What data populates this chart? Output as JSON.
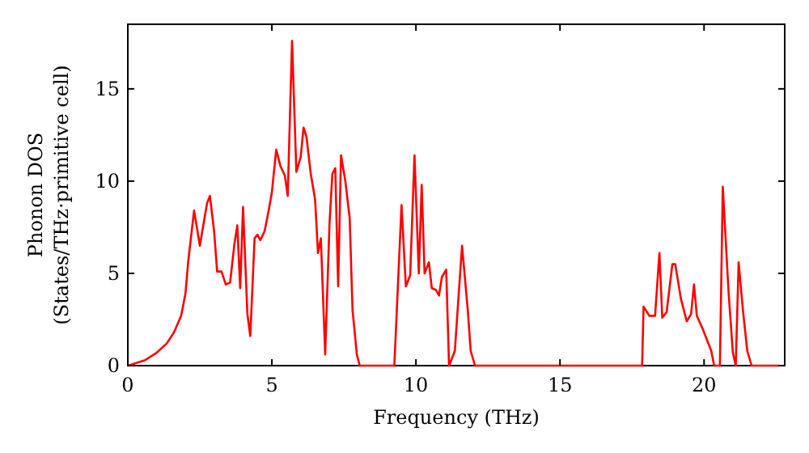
{
  "chart_data": {
    "type": "line",
    "xlabel": "Frequency (THz)",
    "ylabel": "Phonon DOS\n(States/THz·primitive cell)",
    "xlim": [
      0,
      22.8
    ],
    "ylim": [
      0,
      18.5
    ],
    "xticks": [
      0,
      5,
      10,
      15,
      20
    ],
    "yticks": [
      0,
      5,
      10,
      15
    ],
    "grid": false,
    "marker": "none",
    "line_style": "solid",
    "series": [
      {
        "color": "#ff0000",
        "x": [
          0,
          0.6,
          1.0,
          1.35,
          1.6,
          1.85,
          2.0,
          2.1,
          2.3,
          2.5,
          2.75,
          2.85,
          3.0,
          3.1,
          3.25,
          3.4,
          3.55,
          3.7,
          3.8,
          3.9,
          4.0,
          4.15,
          4.25,
          4.4,
          4.5,
          4.6,
          4.75,
          4.9,
          5.0,
          5.15,
          5.3,
          5.45,
          5.55,
          5.7,
          5.85,
          6.0,
          6.1,
          6.2,
          6.35,
          6.5,
          6.6,
          6.7,
          6.85,
          7.0,
          7.1,
          7.2,
          7.3,
          7.4,
          7.55,
          7.7,
          7.8,
          7.95,
          8.05,
          9.25,
          9.5,
          9.65,
          9.8,
          9.95,
          10.1,
          10.2,
          10.3,
          10.45,
          10.55,
          10.7,
          10.8,
          10.9,
          11.05,
          11.15,
          11.35,
          11.6,
          11.8,
          11.9,
          12.05,
          17.85,
          17.9,
          18.1,
          18.3,
          18.45,
          18.55,
          18.7,
          18.9,
          19.0,
          19.2,
          19.4,
          19.55,
          19.65,
          19.75,
          19.95,
          20.05,
          20.25,
          20.35,
          20.55,
          20.65,
          20.85,
          21.0,
          21.1,
          21.2,
          21.35,
          21.5,
          21.65,
          22.6
        ],
        "values": [
          0,
          0.3,
          0.7,
          1.2,
          1.8,
          2.7,
          3.9,
          5.7,
          8.4,
          6.5,
          8.8,
          9.2,
          7.2,
          5.1,
          5.1,
          4.4,
          4.5,
          6.6,
          7.6,
          4.2,
          8.6,
          2.8,
          1.6,
          6.9,
          7.1,
          6.8,
          7.3,
          8.5,
          9.4,
          11.7,
          10.8,
          10.3,
          9.2,
          17.6,
          10.5,
          11.3,
          12.9,
          12.4,
          10.4,
          9.0,
          6.1,
          6.9,
          0.6,
          7.7,
          10.4,
          10.7,
          4.3,
          11.4,
          10.0,
          8.0,
          3.0,
          0.6,
          0,
          0,
          8.7,
          4.3,
          4.9,
          11.4,
          5.0,
          9.8,
          5.0,
          5.6,
          4.2,
          4.1,
          3.8,
          4.8,
          5.2,
          0,
          0.8,
          6.5,
          3.0,
          0.8,
          0,
          0,
          3.2,
          2.7,
          2.7,
          6.1,
          2.6,
          2.9,
          5.5,
          5.5,
          3.6,
          2.4,
          2.8,
          4.4,
          2.7,
          2.0,
          1.6,
          0.8,
          0,
          0,
          9.7,
          4.0,
          0.7,
          0,
          5.6,
          3.0,
          0.8,
          0,
          0
        ]
      }
    ]
  }
}
